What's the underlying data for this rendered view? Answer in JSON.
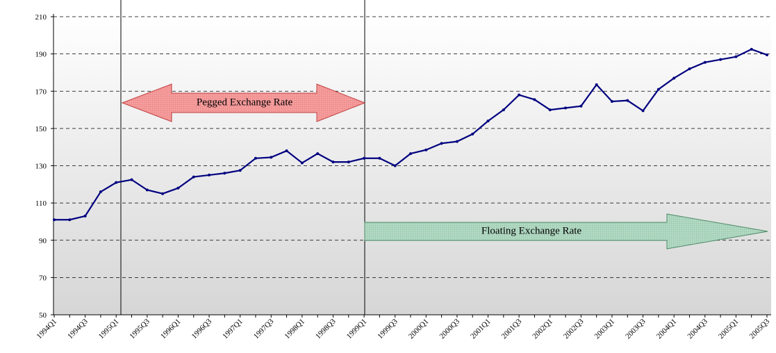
{
  "chart_data": {
    "type": "line",
    "categories": [
      "1994Q1",
      null,
      "1994Q3",
      null,
      "1995Q1",
      null,
      "1995Q3",
      null,
      "1996Q1",
      null,
      "1996Q3",
      null,
      "1997Q1",
      null,
      "1997Q3",
      null,
      "1998Q1",
      null,
      "1998Q3",
      null,
      "1999Q1",
      null,
      "1999Q3",
      null,
      "2000Q1",
      null,
      "2000Q3",
      null,
      "2001Q1",
      null,
      "2001Q3",
      null,
      "2002Q1",
      null,
      "2002Q3",
      null,
      "2003Q1",
      null,
      "2003Q3",
      null,
      "2004Q1",
      null,
      "2004Q3",
      null,
      "2005Q1",
      null,
      "2005Q3"
    ],
    "series": [
      {
        "color": "#000080",
        "values": [
          101,
          101,
          103,
          116,
          121,
          122.5,
          117,
          115,
          118,
          124,
          125,
          126,
          127.5,
          134,
          134.5,
          138,
          131.5,
          136.5,
          132,
          132,
          134,
          134,
          130,
          136.5,
          138.5,
          142,
          143,
          147,
          154,
          160,
          168,
          165.5,
          160,
          161,
          162,
          173.5,
          164.5,
          165,
          159.5,
          171,
          177,
          182,
          185.5,
          187,
          188.5,
          192.5,
          189.5
        ]
      }
    ],
    "ylim": [
      50,
      210
    ],
    "yticks": [
      50,
      70,
      90,
      110,
      130,
      150,
      170,
      190,
      210
    ],
    "grid": true,
    "annotations": [
      "Pegged Exchange Rate",
      "Floating Exchange Rate"
    ]
  }
}
